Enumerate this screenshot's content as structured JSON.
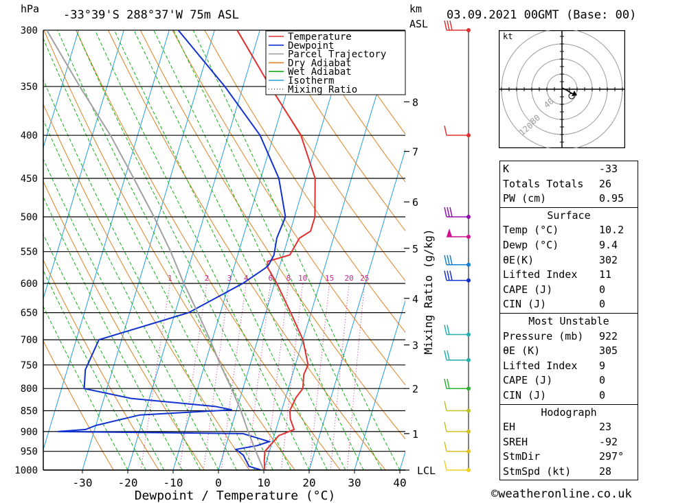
{
  "header": {
    "p_unit": "hPa",
    "location": "-33°39'S 288°37'W 75m ASL",
    "km_unit": "km",
    "asl_unit": "ASL",
    "datetime": "03.09.2021 00GMT (Base: 00)"
  },
  "colors": {
    "temperature": "#e03030",
    "dewpoint": "#1030d0",
    "parcel": "#a0a0a0",
    "dry_adiabat": "#e08020",
    "wet_adiabat": "#10b010",
    "isotherm": "#20a0e0",
    "mixing_ratio": "#d02090"
  },
  "chart_data": {
    "type": "line",
    "title": "",
    "xlabel": "Dewpoint / Temperature (°C)",
    "ylabel": "hPa",
    "y_scale": "log",
    "x_ticks": [
      -30,
      -20,
      -10,
      0,
      10,
      20,
      30,
      40
    ],
    "x_ticklabels": [
      "-30",
      "-20",
      "-10",
      "0",
      "10",
      "20",
      "30",
      "40"
    ],
    "p_levels": [
      300,
      350,
      400,
      450,
      500,
      550,
      600,
      650,
      700,
      750,
      800,
      850,
      900,
      950,
      1000
    ],
    "p_ticklabels": [
      "300",
      "350",
      "400",
      "450",
      "500",
      "550",
      "600",
      "650",
      "700",
      "750",
      "800",
      "850",
      "900",
      "950",
      "1000"
    ],
    "right_axis_label": "Mixing Ratio (g/kg)",
    "km_ticks": [
      {
        "label": "8",
        "p": 365
      },
      {
        "label": "7",
        "p": 418
      },
      {
        "label": "6",
        "p": 480
      },
      {
        "label": "5",
        "p": 545
      },
      {
        "label": "4",
        "p": 625
      },
      {
        "label": "3",
        "p": 710
      },
      {
        "label": "2",
        "p": 800
      },
      {
        "label": "1",
        "p": 905
      },
      {
        "label": "LCL",
        "p": 1000
      }
    ],
    "mixing_ratio_labels": [
      "1",
      "2",
      "3",
      "4",
      "6",
      "8",
      "10",
      "15",
      "20",
      "25"
    ],
    "legend": [
      "Temperature",
      "Dewpoint",
      "Parcel Trajectory",
      "Dry Adiabat",
      "Wet Adiabat",
      "Isotherm",
      "Mixing Ratio"
    ],
    "legend_position": "top-right",
    "series": [
      {
        "name": "Temperature",
        "points": [
          [
            1000,
            10.2
          ],
          [
            975,
            9.5
          ],
          [
            950,
            9
          ],
          [
            930,
            10
          ],
          [
            910,
            11
          ],
          [
            895,
            14
          ],
          [
            870,
            12.5
          ],
          [
            850,
            11.8
          ],
          [
            820,
            12.3
          ],
          [
            800,
            13.2
          ],
          [
            770,
            12.5
          ],
          [
            750,
            12.8
          ],
          [
            700,
            10
          ],
          [
            650,
            5.5
          ],
          [
            600,
            0.5
          ],
          [
            575,
            -2.5
          ],
          [
            565,
            -3
          ],
          [
            555,
            1.5
          ],
          [
            530,
            2.5
          ],
          [
            520,
            4.5
          ],
          [
            500,
            4.5
          ],
          [
            450,
            2
          ],
          [
            400,
            -4
          ],
          [
            350,
            -14
          ],
          [
            300,
            -25
          ]
        ]
      },
      {
        "name": "Dewpoint",
        "points": [
          [
            1000,
            9.4
          ],
          [
            990,
            6.5
          ],
          [
            960,
            4.5
          ],
          [
            945,
            2.5
          ],
          [
            935,
            7
          ],
          [
            925,
            9.3
          ],
          [
            905,
            3
          ],
          [
            900,
            -38
          ],
          [
            895,
            -32
          ],
          [
            885,
            -30
          ],
          [
            860,
            -21
          ],
          [
            848,
            -1
          ],
          [
            840,
            -5
          ],
          [
            822,
            -24
          ],
          [
            800,
            -35
          ],
          [
            760,
            -36
          ],
          [
            700,
            -35
          ],
          [
            650,
            -17
          ],
          [
            600,
            -7
          ],
          [
            575,
            -3
          ],
          [
            570,
            -2.5
          ],
          [
            555,
            -2
          ],
          [
            530,
            -2.5
          ],
          [
            500,
            -2
          ],
          [
            450,
            -6
          ],
          [
            400,
            -13
          ],
          [
            350,
            -24
          ],
          [
            300,
            -38
          ]
        ]
      },
      {
        "name": "Parcel Trajectory",
        "points": [
          [
            1000,
            10
          ],
          [
            950,
            7
          ],
          [
            900,
            4
          ],
          [
            850,
            1
          ],
          [
            800,
            -2.5
          ],
          [
            750,
            -6.5
          ],
          [
            700,
            -10.5
          ],
          [
            650,
            -15
          ],
          [
            600,
            -20
          ],
          [
            550,
            -25
          ],
          [
            500,
            -31
          ],
          [
            450,
            -38
          ],
          [
            400,
            -46
          ],
          [
            350,
            -56
          ],
          [
            300,
            -67
          ]
        ]
      }
    ]
  },
  "wind_barbs": [
    {
      "p": 300,
      "color": "#e03030",
      "pennants": 0,
      "barbs": 3
    },
    {
      "p": 400,
      "color": "#e03030",
      "pennants": 0,
      "barbs": 1
    },
    {
      "p": 500,
      "color": "#9010b0",
      "pennants": 0,
      "barbs": 3
    },
    {
      "p": 528,
      "color": "#d01090",
      "pennants": 1,
      "barbs": 0
    },
    {
      "p": 570,
      "color": "#1080d0",
      "pennants": 0,
      "barbs": 3
    },
    {
      "p": 595,
      "color": "#1030d0",
      "pennants": 0,
      "barbs": 3
    },
    {
      "p": 690,
      "color": "#20b0b0",
      "pennants": 0,
      "barbs": 2
    },
    {
      "p": 740,
      "color": "#20b0b0",
      "pennants": 0,
      "barbs": 2
    },
    {
      "p": 800,
      "color": "#30b030",
      "pennants": 0,
      "barbs": 2
    },
    {
      "p": 850,
      "color": "#c0c020",
      "pennants": 0,
      "barbs": 1
    },
    {
      "p": 900,
      "color": "#d0c020",
      "pennants": 0,
      "barbs": 1
    },
    {
      "p": 950,
      "color": "#e0c020",
      "pennants": 0,
      "barbs": 1
    },
    {
      "p": 1000,
      "color": "#f0d020",
      "pennants": 0,
      "barbs": 1
    }
  ],
  "hodograph": {
    "unit": "kt",
    "rings": [
      "40",
      "80",
      "120"
    ]
  },
  "indices": {
    "general": [
      {
        "label": "K",
        "value": "-33"
      },
      {
        "label": "Totals Totals",
        "value": "26"
      },
      {
        "label": "PW (cm)",
        "value": "0.95"
      }
    ],
    "surface_title": "Surface",
    "surface": [
      {
        "label": "Temp (°C)",
        "value": "10.2"
      },
      {
        "label": "Dewp (°C)",
        "value": "9.4"
      },
      {
        "label": "θE(K)",
        "value": "302"
      },
      {
        "label": "Lifted Index",
        "value": "11"
      },
      {
        "label": "CAPE (J)",
        "value": "0"
      },
      {
        "label": "CIN (J)",
        "value": "0"
      }
    ],
    "most_unstable_title": "Most Unstable",
    "most_unstable": [
      {
        "label": "Pressure (mb)",
        "value": "922"
      },
      {
        "label": "θE (K)",
        "value": "305"
      },
      {
        "label": "Lifted Index",
        "value": "9"
      },
      {
        "label": "CAPE (J)",
        "value": "0"
      },
      {
        "label": "CIN (J)",
        "value": "0"
      }
    ],
    "hodograph_title": "Hodograph",
    "hodograph": [
      {
        "label": "EH",
        "value": "23"
      },
      {
        "label": "SREH",
        "value": "-92"
      },
      {
        "label": "StmDir",
        "value": "297°"
      },
      {
        "label": "StmSpd (kt)",
        "value": "28"
      }
    ]
  },
  "footer": {
    "copyright_symbol": "©",
    "site": "weatheronline.co.uk"
  }
}
